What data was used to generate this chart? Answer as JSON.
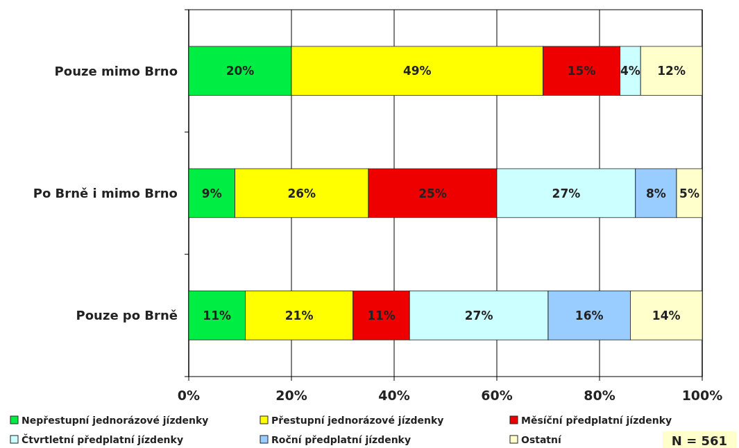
{
  "chart_data": {
    "type": "bar",
    "orientation": "horizontal",
    "stacked": true,
    "categories": [
      "Pouze mimo Brno",
      "Po Brně i mimo Brno",
      "Pouze po Brně"
    ],
    "series": [
      {
        "name": "Nepřestupní jednorázové jízdenky",
        "color": "#00ee44",
        "values": [
          20,
          9,
          11
        ],
        "value_labels": [
          "20%",
          "9%",
          "11%"
        ]
      },
      {
        "name": "Přestupní jednorázové jízdenky",
        "color": "#ffff00",
        "values": [
          49,
          26,
          21
        ],
        "value_labels": [
          "49%",
          "26%",
          "21%"
        ]
      },
      {
        "name": "Měsíční předplatní jízdenky",
        "color": "#ee0000",
        "values": [
          15,
          25,
          11
        ],
        "value_labels": [
          "15%",
          "25%",
          "11%"
        ]
      },
      {
        "name": "Čtvrtletní předplatní jízdenky",
        "color": "#ccffff",
        "values": [
          4,
          27,
          27
        ],
        "value_labels": [
          "4%",
          "27%",
          "27%"
        ]
      },
      {
        "name": "Roční předplatní jízdenky",
        "color": "#99ccff",
        "values": [
          null,
          8,
          16
        ],
        "value_labels": [
          null,
          "8%",
          "16%"
        ]
      },
      {
        "name": "Ostatní",
        "color": "#ffffcc",
        "values": [
          12,
          5,
          14
        ],
        "value_labels": [
          "12%",
          "5%",
          "14%"
        ]
      }
    ],
    "xlim": [
      0,
      100
    ],
    "xticks": [
      {
        "value": 0,
        "label": "0%"
      },
      {
        "value": 20,
        "label": "20%"
      },
      {
        "value": 40,
        "label": "40%"
      },
      {
        "value": 60,
        "label": "60%"
      },
      {
        "value": 80,
        "label": "80%"
      },
      {
        "value": 100,
        "label": "100%"
      }
    ],
    "grid": "x",
    "legend": "bottom",
    "annotations": [
      "N = 561"
    ]
  }
}
